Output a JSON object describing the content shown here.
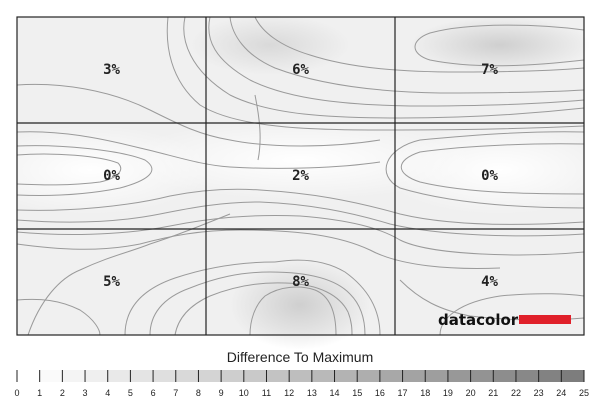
{
  "chart_data": {
    "type": "heatmap",
    "title": "Difference To Maximum",
    "rows": 3,
    "cols": 3,
    "cells": [
      [
        "3%",
        "6%",
        "7%"
      ],
      [
        "0%",
        "2%",
        "0%"
      ],
      [
        "5%",
        "8%",
        "4%"
      ]
    ],
    "values": [
      [
        3,
        6,
        7
      ],
      [
        0,
        2,
        0
      ],
      [
        5,
        8,
        4
      ]
    ],
    "scale": {
      "ticks": [
        "0",
        "1",
        "2",
        "3",
        "4",
        "5",
        "6",
        "7",
        "8",
        "9",
        "10",
        "11",
        "12",
        "13",
        "14",
        "15",
        "16",
        "17",
        "18",
        "19",
        "20",
        "21",
        "22",
        "23",
        "24",
        "25"
      ],
      "min": 0,
      "max": 25
    },
    "contour_lines": true,
    "colors": {
      "background": "#f0f0f0",
      "grid_line": "#222222",
      "contour": "#9a9a9a",
      "brand_bar": "#e0202a"
    }
  },
  "logo": {
    "text": "datacolor"
  }
}
